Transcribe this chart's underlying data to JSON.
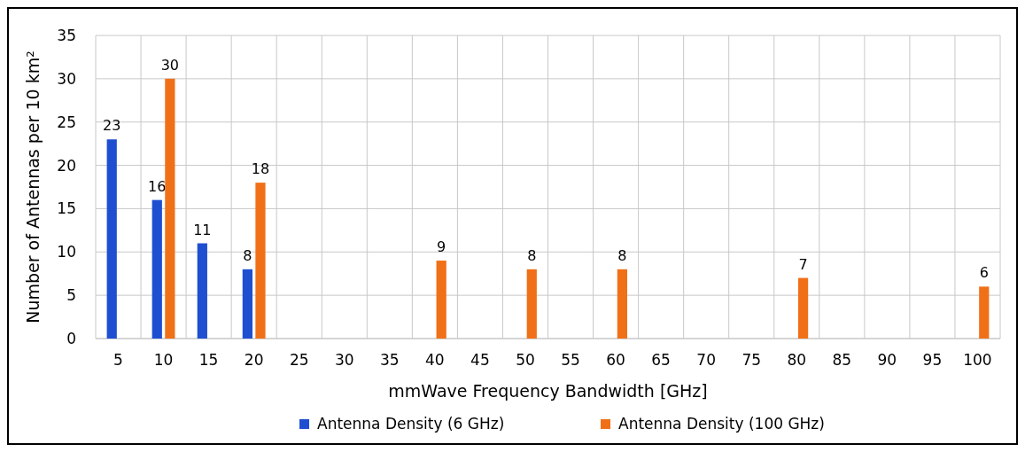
{
  "chart_data": {
    "type": "bar",
    "xlabel": "mmWave Frequency Bandwidth [GHz]",
    "ylabel": "Number of Antennas per 10 km²",
    "categories": [
      "5",
      "10",
      "15",
      "20",
      "25",
      "30",
      "35",
      "40",
      "45",
      "50",
      "55",
      "60",
      "65",
      "70",
      "75",
      "80",
      "85",
      "90",
      "95",
      "100"
    ],
    "series": [
      {
        "name": "Antenna Density (6 GHz)",
        "color": "#1f4fd1",
        "values": [
          23,
          16,
          11,
          8,
          null,
          null,
          null,
          null,
          null,
          null,
          null,
          null,
          null,
          null,
          null,
          null,
          null,
          null,
          null,
          null
        ]
      },
      {
        "name": "Antenna Density (100 GHz)",
        "color": "#f07018",
        "values": [
          null,
          30,
          null,
          18,
          null,
          null,
          null,
          9,
          null,
          8,
          null,
          8,
          null,
          null,
          null,
          7,
          null,
          null,
          null,
          6
        ]
      }
    ],
    "ylim": [
      0,
      35
    ],
    "yticks": [
      0,
      5,
      10,
      15,
      20,
      25,
      30,
      35
    ],
    "grid": true,
    "legend": "bottom",
    "data_labels": true
  }
}
